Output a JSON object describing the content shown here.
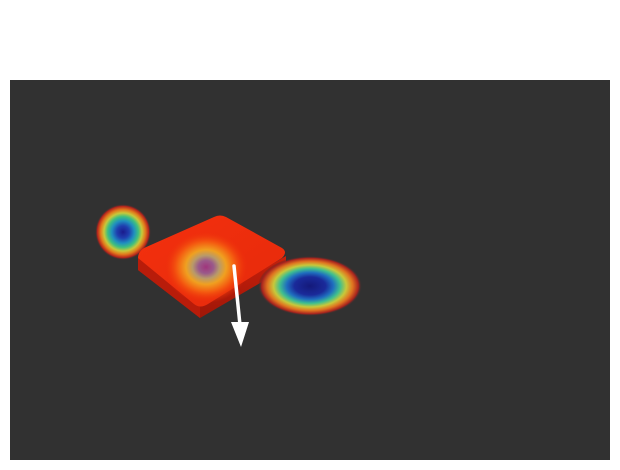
{
  "scene": {
    "background_color": "#313131",
    "page_color": "#ffffff",
    "objects": [
      {
        "id": "small-blob",
        "kind": "heatmap-blob",
        "colormap": "jet"
      },
      {
        "id": "slab",
        "kind": "3d-slab",
        "color": "#e8260c"
      },
      {
        "id": "slab-hotspot",
        "kind": "heatmap-blob",
        "colormap": "jet-inverted"
      },
      {
        "id": "elliptical-blob",
        "kind": "heatmap-blob",
        "colormap": "jet"
      },
      {
        "id": "direction-arrow",
        "kind": "arrow",
        "color": "#ffffff"
      }
    ]
  }
}
